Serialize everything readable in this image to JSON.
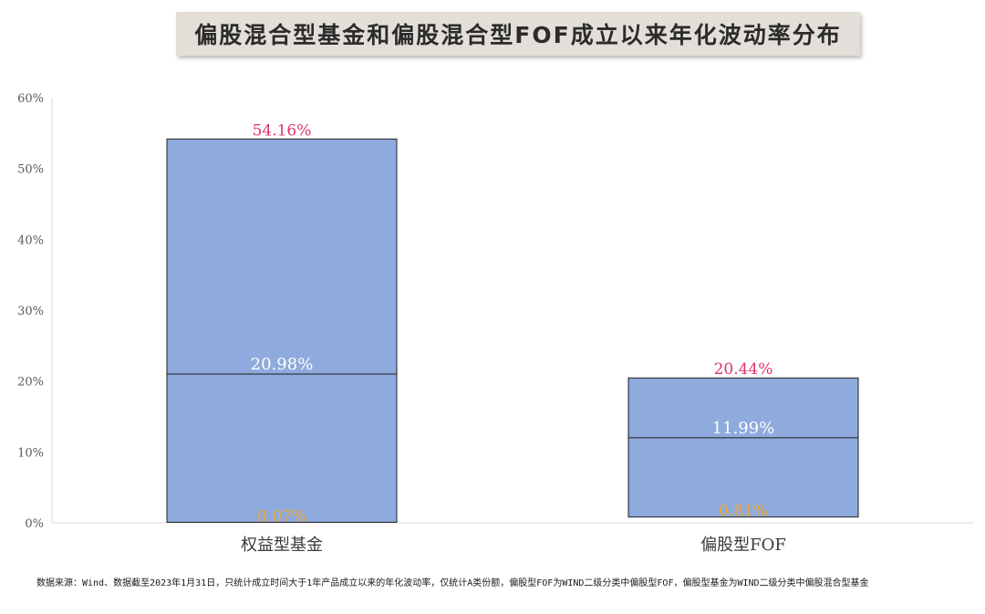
{
  "title": "偏股混合型基金和偏股混合型FOF成立以来年化波动率分布",
  "footnote": "数据来源：Wind、数据截至2023年1月31日，只统计成立时间大于1年产品成立以来的年化波动率，仅统计A类份额，偏股型FOF为WIND二级分类中偏股型FOF，偏股型基金为WIND二级分类中偏股混合型基金",
  "colors": {
    "bar_fill": "#8faadc",
    "bar_stroke": "#1f1f1f",
    "max_label": "#e0336b",
    "median_label": "#ffffff",
    "min_label": "#f0a830",
    "axis_text": "#595959",
    "axis_line": "#d9d9d9"
  },
  "chart_data": {
    "type": "bar",
    "subtype": "floating-range-with-median",
    "categories": [
      "权益型基金",
      "偏股型FOF"
    ],
    "series": [
      {
        "values": [
          0.07,
          0.81
        ]
      },
      {
        "values": [
          20.98,
          11.99
        ]
      },
      {
        "values": [
          54.16,
          20.44
        ]
      }
    ],
    "data_labels": [
      {
        "min": "0.07%",
        "median": "20.98%",
        "max": "54.16%"
      },
      {
        "min": "0.81%",
        "median": "11.99%",
        "max": "20.44%"
      }
    ],
    "yticks": [
      "0%",
      "10%",
      "20%",
      "30%",
      "40%",
      "50%",
      "60%"
    ],
    "ylim": [
      0,
      60
    ],
    "grid": false,
    "legend": "none"
  }
}
